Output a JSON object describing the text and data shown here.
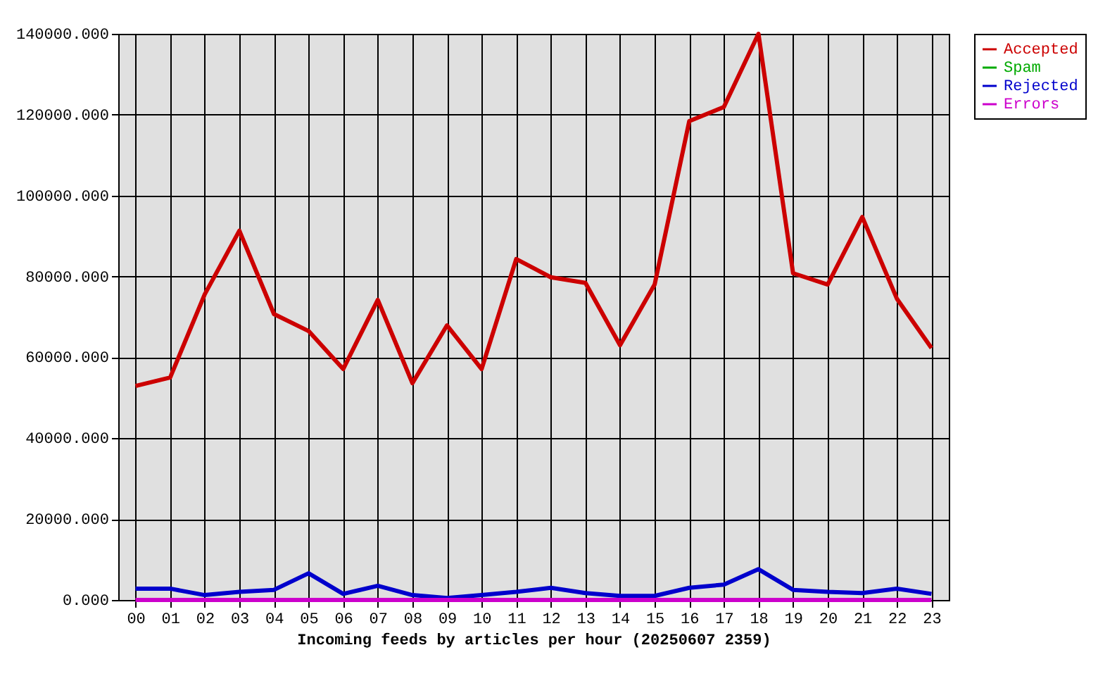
{
  "chart_data": {
    "type": "line",
    "xlabel": "Incoming feeds by articles per hour (20250607 2359)",
    "categories": [
      "00",
      "01",
      "02",
      "03",
      "04",
      "05",
      "06",
      "07",
      "08",
      "09",
      "10",
      "11",
      "12",
      "13",
      "14",
      "15",
      "16",
      "17",
      "18",
      "19",
      "20",
      "21",
      "22",
      "23"
    ],
    "series": [
      {
        "name": "Accepted",
        "color": "#cc0000",
        "values": [
          52900,
          55000,
          75600,
          91300,
          70700,
          66500,
          57100,
          74200,
          53600,
          67900,
          57100,
          84300,
          79800,
          78400,
          63000,
          78000,
          118400,
          121900,
          140000,
          80800,
          78000,
          94700,
          74500,
          62300
        ]
      },
      {
        "name": "Spam",
        "color": "#00aa00",
        "values": [
          null,
          null,
          null,
          null,
          null,
          null,
          null,
          null,
          null,
          null,
          null,
          null,
          null,
          null,
          null,
          null,
          null,
          null,
          null,
          null,
          null,
          null,
          null,
          null
        ]
      },
      {
        "name": "Rejected",
        "color": "#0000cc",
        "values": [
          2800,
          2800,
          1200,
          2000,
          2500,
          6600,
          1500,
          3500,
          1200,
          500,
          1200,
          2000,
          3000,
          1700,
          1000,
          1000,
          3000,
          3800,
          7600,
          2500,
          2000,
          1700,
          2800,
          1500
        ]
      },
      {
        "name": "Errors",
        "color": "#cc00cc",
        "values": [
          0,
          0,
          0,
          0,
          0,
          0,
          0,
          0,
          0,
          0,
          0,
          0,
          0,
          0,
          0,
          0,
          0,
          0,
          0,
          0,
          0,
          0,
          0,
          0
        ]
      }
    ],
    "ylim": [
      0,
      140000
    ],
    "yticks": [
      {
        "value": 0,
        "label": "0.000"
      },
      {
        "value": 20000,
        "label": "20000.000"
      },
      {
        "value": 40000,
        "label": "40000.000"
      },
      {
        "value": 60000,
        "label": "60000.000"
      },
      {
        "value": 80000,
        "label": "80000.000"
      },
      {
        "value": 100000,
        "label": "100000.000"
      },
      {
        "value": 120000,
        "label": "120000.000"
      },
      {
        "value": 140000,
        "label": "140000.000"
      }
    ],
    "grid": true,
    "legend": "top right"
  }
}
